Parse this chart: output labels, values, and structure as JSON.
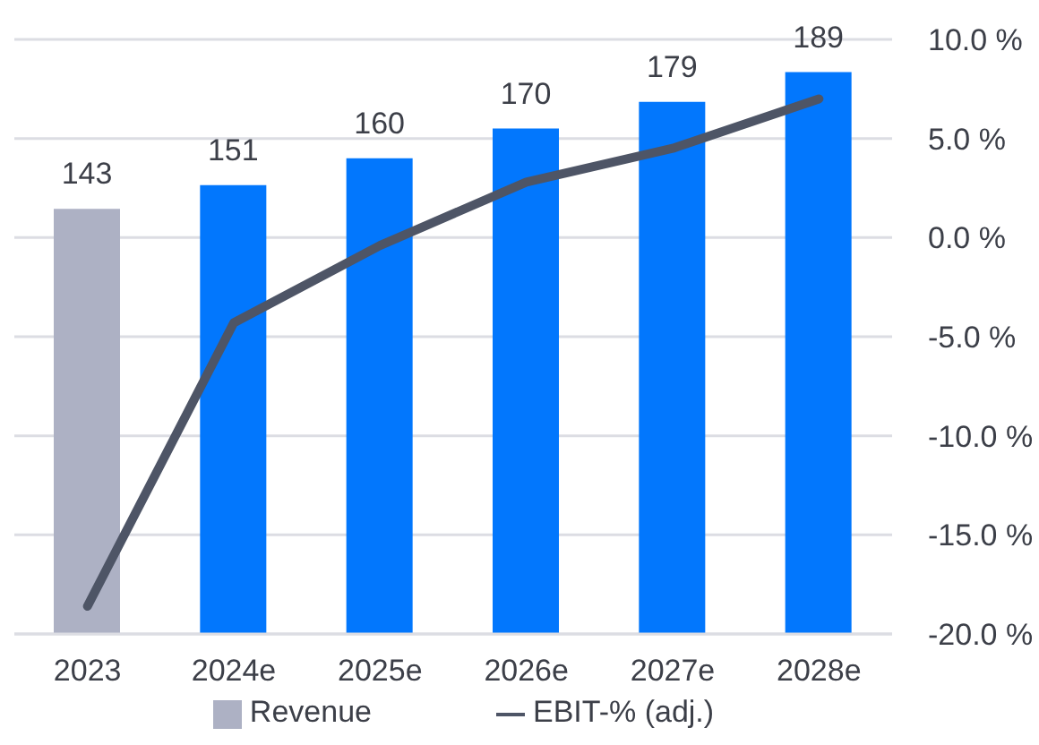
{
  "chart_data": {
    "type": "bar",
    "categories": [
      "2023",
      "2024e",
      "2025e",
      "2026e",
      "2027e",
      "2028e"
    ],
    "series": [
      {
        "name": "Revenue",
        "color": "#adb1c4",
        "colors": [
          "#adb1c4",
          "#0277fd",
          "#0277fd",
          "#0277fd",
          "#0277fd",
          "#0277fd"
        ],
        "values": [
          143,
          151,
          160,
          170,
          179,
          189
        ],
        "value_labels": [
          "143",
          "151",
          "160",
          "170",
          "179",
          "189"
        ]
      },
      {
        "name": "EBIT-% (adj.)",
        "type": "line",
        "axis": "y2",
        "color": "#4e5566",
        "values": [
          -18.6,
          -4.3,
          -0.4,
          2.8,
          4.5,
          7.0
        ]
      }
    ],
    "relative": false,
    "y2lim": [
      -20,
      10
    ],
    "y2ticks": [
      {
        "value": -20,
        "label": "-20.0 %"
      },
      {
        "value": -15,
        "label": "-15.0 %"
      },
      {
        "value": -10,
        "label": "-10.0 %"
      },
      {
        "value": -5,
        "label": "-5.0 %"
      },
      {
        "value": 0,
        "label": "0.0 %"
      },
      {
        "value": 5,
        "label": "5.0 %"
      },
      {
        "value": 10,
        "label": "10.0 %"
      }
    ],
    "grid": "y",
    "legend": "bottom",
    "marker": "none",
    "line_style": "solid"
  }
}
